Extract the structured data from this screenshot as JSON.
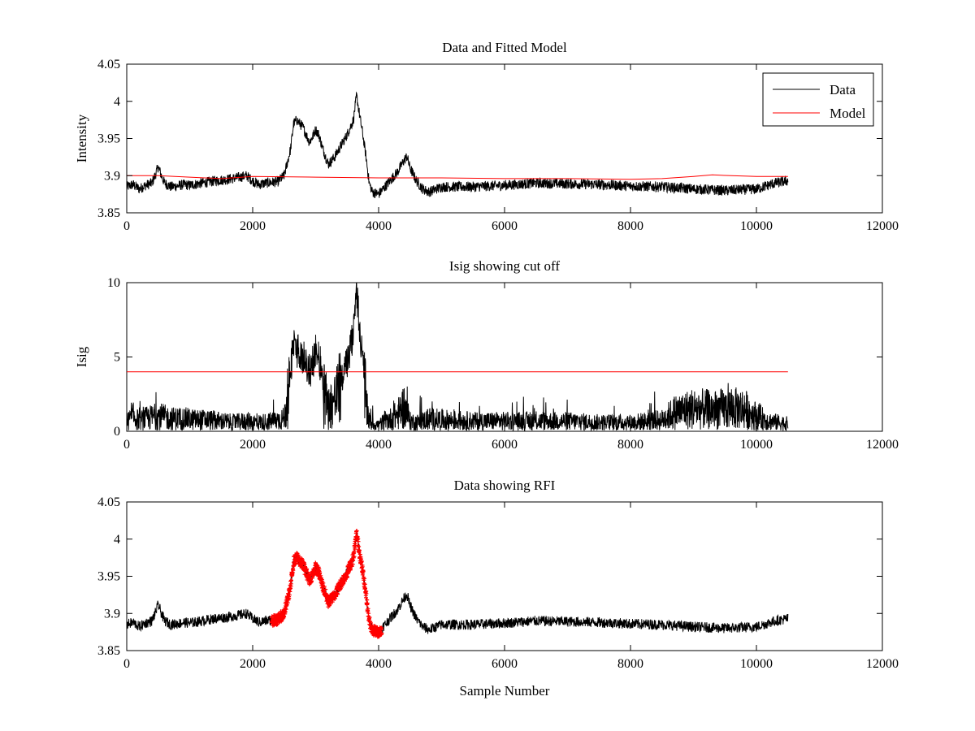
{
  "figure": {
    "background": "#ffffff",
    "data_color": "#000000",
    "model_color": "#ff0000",
    "rfi_color": "#ff0000"
  },
  "chart_data": [
    {
      "type": "line",
      "title": "Data and Fitted Model",
      "xlabel": "",
      "ylabel": "Intensity",
      "xlim": [
        0,
        12000
      ],
      "ylim": [
        3.85,
        4.05
      ],
      "xticks": [
        "0",
        "2000",
        "4000",
        "6000",
        "8000",
        "10000",
        "12000"
      ],
      "yticks": [
        "3.85",
        "3.9",
        "3.95",
        "4",
        "4.05"
      ],
      "legend": {
        "position": "top-right",
        "entries": [
          "Data",
          "Model"
        ]
      },
      "grid": false,
      "series": [
        {
          "name": "Data",
          "color": "#000000",
          "noise": 0.007,
          "x": [
            0,
            100,
            200,
            300,
            400,
            450,
            500,
            550,
            600,
            700,
            800,
            900,
            1000,
            1200,
            1400,
            1600,
            1800,
            1900,
            2000,
            2100,
            2200,
            2300,
            2400,
            2500,
            2600,
            2650,
            2700,
            2800,
            2900,
            2950,
            3000,
            3050,
            3100,
            3200,
            3300,
            3400,
            3500,
            3600,
            3650,
            3700,
            3750,
            3800,
            3850,
            3900,
            4000,
            4100,
            4200,
            4300,
            4400,
            4450,
            4500,
            4600,
            4700,
            4800,
            5000,
            5500,
            6000,
            6500,
            7000,
            7500,
            8000,
            8500,
            9000,
            9500,
            10000,
            10300,
            10500
          ],
          "y": [
            3.885,
            3.888,
            3.882,
            3.887,
            3.89,
            3.9,
            3.912,
            3.9,
            3.89,
            3.885,
            3.886,
            3.888,
            3.887,
            3.89,
            3.893,
            3.895,
            3.898,
            3.9,
            3.893,
            3.888,
            3.89,
            3.891,
            3.892,
            3.9,
            3.935,
            3.97,
            3.975,
            3.965,
            3.945,
            3.952,
            3.962,
            3.955,
            3.94,
            3.915,
            3.925,
            3.94,
            3.955,
            3.975,
            4.008,
            3.98,
            3.955,
            3.925,
            3.89,
            3.878,
            3.875,
            3.885,
            3.895,
            3.905,
            3.92,
            3.926,
            3.91,
            3.893,
            3.882,
            3.878,
            3.885,
            3.885,
            3.887,
            3.89,
            3.889,
            3.888,
            3.886,
            3.885,
            3.882,
            3.88,
            3.882,
            3.89,
            3.893
          ]
        },
        {
          "name": "Model",
          "color": "#ff0000",
          "x": [
            0,
            500,
            1000,
            1500,
            2000,
            3000,
            4000,
            5000,
            6000,
            7000,
            8000,
            8500,
            9000,
            9300,
            9600,
            10000,
            10500
          ],
          "y": [
            3.9,
            3.9,
            3.898,
            3.896,
            3.899,
            3.898,
            3.897,
            3.897,
            3.896,
            3.896,
            3.895,
            3.896,
            3.899,
            3.901,
            3.9,
            3.899,
            3.899
          ]
        }
      ]
    },
    {
      "type": "line",
      "title": "Isig showing cut off",
      "xlabel": "",
      "ylabel": "Isig",
      "xlim": [
        0,
        12000
      ],
      "ylim": [
        0,
        10
      ],
      "xticks": [
        "0",
        "2000",
        "4000",
        "6000",
        "8000",
        "10000",
        "12000"
      ],
      "yticks": [
        "0",
        "5",
        "10"
      ],
      "grid": false,
      "series": [
        {
          "color": "#000000",
          "noise": 0.9,
          "x": [
            0,
            100,
            200,
            300,
            500,
            700,
            900,
            1100,
            1300,
            1500,
            1700,
            1900,
            2100,
            2300,
            2400,
            2500,
            2600,
            2650,
            2700,
            2800,
            2900,
            2950,
            3000,
            3050,
            3100,
            3200,
            3300,
            3400,
            3500,
            3600,
            3650,
            3700,
            3750,
            3800,
            3850,
            3900,
            4000,
            4100,
            4200,
            4300,
            4400,
            4450,
            4500,
            4600,
            4700,
            4800,
            5000,
            5500,
            6000,
            6500,
            7000,
            7500,
            8000,
            8500,
            8700,
            9000,
            9300,
            9600,
            9800,
            10000,
            10200,
            10500
          ],
          "y": [
            0.7,
            1.2,
            0.8,
            1.0,
            1.2,
            1.0,
            1.0,
            0.9,
            0.9,
            0.8,
            0.7,
            0.8,
            0.7,
            0.8,
            0.9,
            1.0,
            4.0,
            6.0,
            5.5,
            5.0,
            4.0,
            4.5,
            5.5,
            5.0,
            4.0,
            1.8,
            2.5,
            3.5,
            4.5,
            6.5,
            9.5,
            7.0,
            4.5,
            2.5,
            0.8,
            0.6,
            0.5,
            0.8,
            1.0,
            1.3,
            2.0,
            1.5,
            0.8,
            0.7,
            0.8,
            1.0,
            0.9,
            0.8,
            0.8,
            0.8,
            0.8,
            0.7,
            0.7,
            0.9,
            1.5,
            1.8,
            1.7,
            1.8,
            1.8,
            1.2,
            0.8,
            0.6
          ]
        },
        {
          "color": "#ff0000",
          "x": [
            0,
            10500
          ],
          "y": [
            4,
            4
          ]
        }
      ]
    },
    {
      "type": "line",
      "title": "Data showing RFI",
      "xlabel": "Sample Number",
      "ylabel": "",
      "xlim": [
        0,
        12000
      ],
      "ylim": [
        3.85,
        4.05
      ],
      "xticks": [
        "0",
        "2000",
        "4000",
        "6000",
        "8000",
        "10000",
        "12000"
      ],
      "yticks": [
        "3.85",
        "3.9",
        "3.95",
        "4",
        "4.05"
      ],
      "grid": false,
      "series": [
        {
          "color": "#000000",
          "noise": 0.007,
          "x": [
            0,
            100,
            200,
            300,
            400,
            450,
            500,
            550,
            600,
            700,
            800,
            900,
            1000,
            1200,
            1400,
            1600,
            1800,
            1900,
            2000,
            2100,
            2200,
            2300,
            2400,
            2500,
            2600,
            2650,
            2700,
            2800,
            2900,
            2950,
            3000,
            3050,
            3100,
            3200,
            3300,
            3400,
            3500,
            3600,
            3650,
            3700,
            3750,
            3800,
            3850,
            3900,
            4000,
            4100,
            4200,
            4300,
            4400,
            4450,
            4500,
            4600,
            4700,
            4800,
            5000,
            5500,
            6000,
            6500,
            7000,
            7500,
            8000,
            8500,
            9000,
            9500,
            10000,
            10300,
            10500
          ],
          "y": [
            3.885,
            3.888,
            3.882,
            3.887,
            3.89,
            3.9,
            3.912,
            3.9,
            3.89,
            3.885,
            3.886,
            3.888,
            3.887,
            3.89,
            3.893,
            3.895,
            3.898,
            3.9,
            3.893,
            3.888,
            3.89,
            3.891,
            3.892,
            3.9,
            3.935,
            3.97,
            3.975,
            3.965,
            3.945,
            3.952,
            3.962,
            3.955,
            3.94,
            3.915,
            3.925,
            3.94,
            3.955,
            3.975,
            4.008,
            3.98,
            3.955,
            3.925,
            3.89,
            3.878,
            3.875,
            3.885,
            3.895,
            3.905,
            3.92,
            3.926,
            3.91,
            3.893,
            3.882,
            3.878,
            3.885,
            3.885,
            3.887,
            3.89,
            3.889,
            3.888,
            3.886,
            3.885,
            3.882,
            3.88,
            3.882,
            3.89,
            3.893
          ]
        },
        {
          "color": "#ff0000",
          "marker": "+",
          "noise": 0.007,
          "x": [
            2300,
            2400,
            2500,
            2600,
            2650,
            2700,
            2800,
            2900,
            2950,
            3000,
            3050,
            3100,
            3200,
            3300,
            3400,
            3500,
            3600,
            3650,
            3700,
            3750,
            3800,
            3850,
            3900,
            4000,
            4050
          ],
          "y": [
            3.89,
            3.892,
            3.9,
            3.935,
            3.97,
            3.975,
            3.965,
            3.945,
            3.952,
            3.962,
            3.955,
            3.94,
            3.915,
            3.925,
            3.94,
            3.955,
            3.975,
            4.008,
            3.98,
            3.955,
            3.925,
            3.89,
            3.878,
            3.875,
            3.876
          ]
        }
      ]
    }
  ]
}
